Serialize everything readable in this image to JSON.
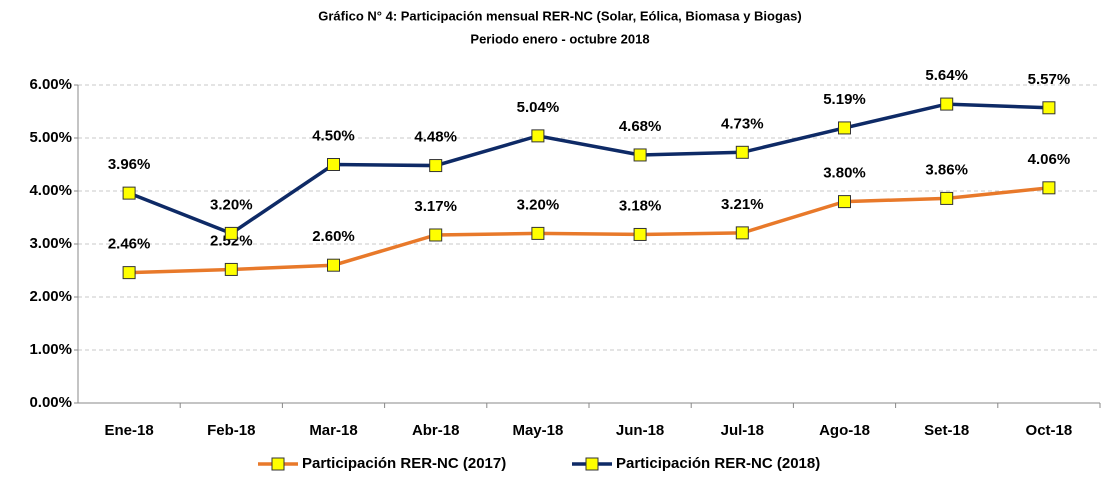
{
  "chart_data": {
    "type": "line",
    "title": "Gráfico N° 4: Participación mensual  RER-NC (Solar, Eólica, Biomasa y Biogas)",
    "subtitle": "Periodo enero - octubre 2018",
    "categories": [
      "Ene-18",
      "Feb-18",
      "Mar-18",
      "Abr-18",
      "May-18",
      "Jun-18",
      "Jul-18",
      "Ago-18",
      "Set-18",
      "Oct-18"
    ],
    "series": [
      {
        "name": "Participación RER-NC (2017)",
        "color": "#e8792a",
        "values": [
          2.46,
          2.52,
          2.6,
          3.17,
          3.2,
          3.18,
          3.21,
          3.8,
          3.86,
          4.06
        ],
        "value_labels": [
          "2.46%",
          "2.52%",
          "2.60%",
          "3.17%",
          "3.20%",
          "3.18%",
          "3.21%",
          "3.80%",
          "3.86%",
          "4.06%"
        ]
      },
      {
        "name": "Participación RER-NC (2018)",
        "color": "#0e2a66",
        "values": [
          3.96,
          3.2,
          4.5,
          4.48,
          5.04,
          4.68,
          4.73,
          5.19,
          5.64,
          5.57
        ],
        "value_labels": [
          "3.96%",
          "3.20%",
          "4.50%",
          "4.48%",
          "5.04%",
          "4.68%",
          "4.73%",
          "5.19%",
          "5.64%",
          "5.57%"
        ]
      }
    ],
    "marker_color": "#ffff00",
    "ylim": [
      0,
      6
    ],
    "yticks": [
      {
        "value": 0,
        "label": "0.00%"
      },
      {
        "value": 1,
        "label": "1.00%"
      },
      {
        "value": 2,
        "label": "2.00%"
      },
      {
        "value": 3,
        "label": "3.00%"
      },
      {
        "value": 4,
        "label": "4.00%"
      },
      {
        "value": 5,
        "label": "5.00%"
      },
      {
        "value": 6,
        "label": "6.00%"
      }
    ],
    "grid": true,
    "legend": "bottom"
  }
}
